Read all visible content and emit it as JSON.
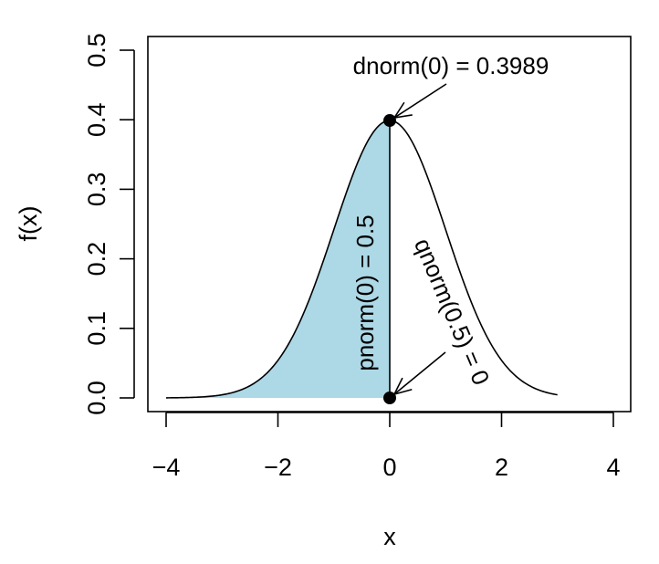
{
  "chart_data": {
    "type": "area",
    "title": "",
    "xlabel": "x",
    "ylabel": "f(x)",
    "xlim": [
      -4,
      4
    ],
    "ylim": [
      0,
      0.5
    ],
    "x_ticks": [
      -4,
      -2,
      0,
      2,
      4
    ],
    "x_tick_labels": [
      "−4",
      "−2",
      "0",
      "2",
      "4"
    ],
    "y_ticks": [
      0.0,
      0.1,
      0.2,
      0.3,
      0.4,
      0.5
    ],
    "y_tick_labels": [
      "0.0",
      "0.1",
      "0.2",
      "0.3",
      "0.4",
      "0.5"
    ],
    "grid": false,
    "curve": {
      "function": "standard normal density",
      "x_from": -4,
      "x_to": 3,
      "color": "#000000"
    },
    "shaded_region": {
      "x_from": -4,
      "x_to": 0,
      "color": "#add8e6"
    },
    "points": [
      {
        "x": 0,
        "y": 0.3989
      },
      {
        "x": 0,
        "y": 0
      }
    ],
    "annotations": [
      {
        "text": "dnorm(0) = 0.3989",
        "arrow_to": {
          "x": 0,
          "y": 0.3989
        }
      },
      {
        "text": "pnorm(0) = 0.5"
      },
      {
        "text": "qnorm(0.5) = 0",
        "arrow_to": {
          "x": 0,
          "y": 0
        }
      }
    ]
  }
}
